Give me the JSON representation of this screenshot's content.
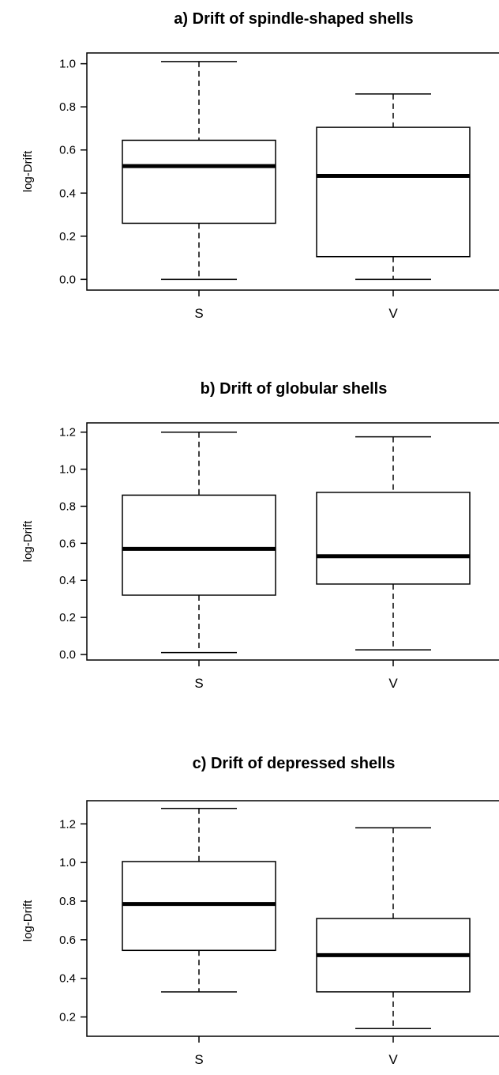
{
  "chart_data": [
    {
      "type": "box",
      "title": "a) Drift of spindle-shaped shells",
      "ylabel": "log-Drift",
      "xlabel": "",
      "categories": [
        "S",
        "V"
      ],
      "ylim": [
        -0.05,
        1.05
      ],
      "yticks": [
        "0.0",
        "0.2",
        "0.4",
        "0.6",
        "0.8",
        "1.0"
      ],
      "ytick_values": [
        0.0,
        0.2,
        0.4,
        0.6,
        0.8,
        1.0
      ],
      "boxes": [
        {
          "category": "S",
          "whisker_low": 0.0,
          "q1": 0.26,
          "median": 0.525,
          "q3": 0.645,
          "whisker_high": 1.01
        },
        {
          "category": "V",
          "whisker_low": 0.0,
          "q1": 0.105,
          "median": 0.48,
          "q3": 0.705,
          "whisker_high": 0.86
        }
      ]
    },
    {
      "type": "box",
      "title": "b) Drift of globular shells",
      "ylabel": "log-Drift",
      "xlabel": "",
      "categories": [
        "S",
        "V"
      ],
      "ylim": [
        -0.03,
        1.25
      ],
      "yticks": [
        "0.0",
        "0.2",
        "0.4",
        "0.6",
        "0.8",
        "1.0",
        "1.2"
      ],
      "ytick_values": [
        0.0,
        0.2,
        0.4,
        0.6,
        0.8,
        1.0,
        1.2
      ],
      "boxes": [
        {
          "category": "S",
          "whisker_low": 0.01,
          "q1": 0.32,
          "median": 0.57,
          "q3": 0.86,
          "whisker_high": 1.2
        },
        {
          "category": "V",
          "whisker_low": 0.025,
          "q1": 0.38,
          "median": 0.53,
          "q3": 0.875,
          "whisker_high": 1.175
        }
      ]
    },
    {
      "type": "box",
      "title": "c) Drift of depressed shells",
      "ylabel": "log-Drift",
      "xlabel": "",
      "categories": [
        "S",
        "V"
      ],
      "ylim": [
        0.1,
        1.32
      ],
      "yticks": [
        "0.2",
        "0.4",
        "0.6",
        "0.8",
        "1.0",
        "1.2"
      ],
      "ytick_values": [
        0.2,
        0.4,
        0.6,
        0.8,
        1.0,
        1.2
      ],
      "boxes": [
        {
          "category": "S",
          "whisker_low": 0.33,
          "q1": 0.545,
          "median": 0.785,
          "q3": 1.005,
          "whisker_high": 1.28
        },
        {
          "category": "V",
          "whisker_low": 0.14,
          "q1": 0.33,
          "median": 0.52,
          "q3": 0.71,
          "whisker_high": 1.18
        }
      ]
    }
  ]
}
